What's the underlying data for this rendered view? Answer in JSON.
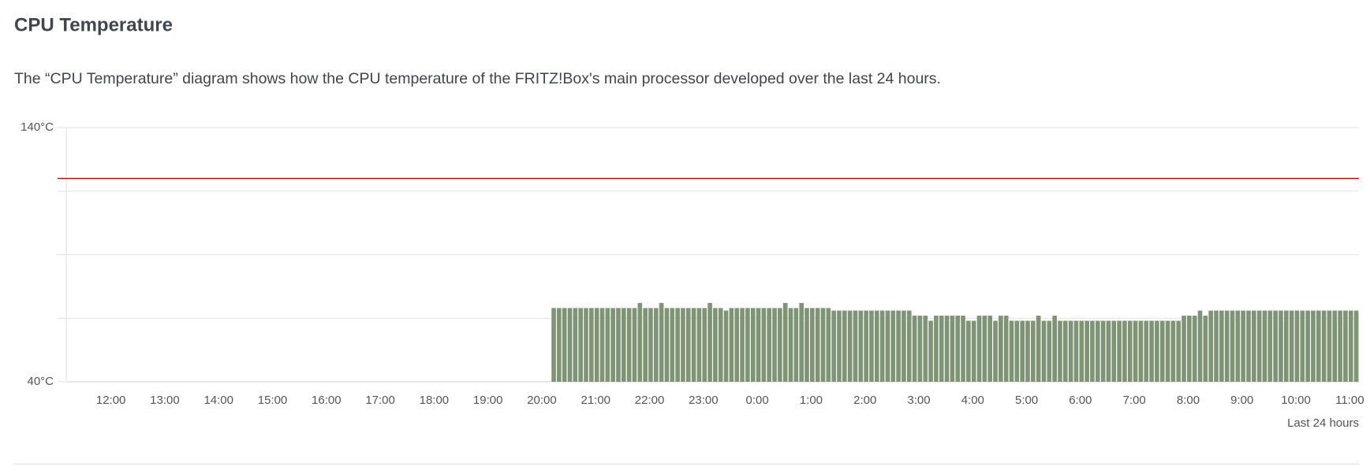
{
  "chart_data": {
    "type": "bar",
    "title": "CPU Temperature",
    "description": "The “CPU Temperature” diagram shows how the CPU temperature of the FRITZ!Box's main processor developed over the last 24 hours.",
    "x_label": "Last 24 hours",
    "categories": [
      null,
      null,
      null,
      null,
      null,
      null,
      null,
      null,
      "12:00",
      null,
      null,
      null,
      null,
      null,
      null,
      null,
      null,
      null,
      "13:00",
      null,
      null,
      null,
      null,
      null,
      null,
      null,
      null,
      null,
      "14:00",
      null,
      null,
      null,
      null,
      null,
      null,
      null,
      null,
      null,
      "15:00",
      null,
      null,
      null,
      null,
      null,
      null,
      null,
      null,
      null,
      "16:00",
      null,
      null,
      null,
      null,
      null,
      null,
      null,
      null,
      null,
      "17:00",
      null,
      null,
      null,
      null,
      null,
      null,
      null,
      null,
      null,
      "18:00",
      null,
      null,
      null,
      null,
      null,
      null,
      null,
      null,
      null,
      "19:00",
      null,
      null,
      null,
      null,
      null,
      null,
      null,
      null,
      null,
      "20:00",
      null,
      null,
      null,
      null,
      null,
      null,
      null,
      null,
      null,
      "21:00",
      null,
      null,
      null,
      null,
      null,
      null,
      null,
      null,
      null,
      "22:00",
      null,
      null,
      null,
      null,
      null,
      null,
      null,
      null,
      null,
      "23:00",
      null,
      null,
      null,
      null,
      null,
      null,
      null,
      null,
      null,
      "0:00",
      null,
      null,
      null,
      null,
      null,
      null,
      null,
      null,
      null,
      "1:00",
      null,
      null,
      null,
      null,
      null,
      null,
      null,
      null,
      null,
      "2:00",
      null,
      null,
      null,
      null,
      null,
      null,
      null,
      null,
      null,
      "3:00",
      null,
      null,
      null,
      null,
      null,
      null,
      null,
      null,
      null,
      "4:00",
      null,
      null,
      null,
      null,
      null,
      null,
      null,
      null,
      null,
      "5:00",
      null,
      null,
      null,
      null,
      null,
      null,
      null,
      null,
      null,
      "6:00",
      null,
      null,
      null,
      null,
      null,
      null,
      null,
      null,
      null,
      "7:00",
      null,
      null,
      null,
      null,
      null,
      null,
      null,
      null,
      null,
      "8:00",
      null,
      null,
      null,
      null,
      null,
      null,
      null,
      null,
      null,
      "9:00",
      null,
      null,
      null,
      null,
      null,
      null,
      null,
      null,
      null,
      "10:00",
      null,
      null,
      null,
      null,
      null,
      null,
      null,
      null,
      null,
      "11:00",
      null
    ],
    "values": [
      null,
      null,
      null,
      null,
      null,
      null,
      null,
      null,
      null,
      null,
      null,
      null,
      null,
      null,
      null,
      null,
      null,
      null,
      null,
      null,
      null,
      null,
      null,
      null,
      null,
      null,
      null,
      null,
      null,
      null,
      null,
      null,
      null,
      null,
      null,
      null,
      null,
      null,
      null,
      null,
      null,
      null,
      null,
      null,
      null,
      null,
      null,
      null,
      null,
      null,
      null,
      null,
      null,
      null,
      null,
      null,
      null,
      null,
      null,
      null,
      null,
      null,
      null,
      null,
      null,
      null,
      null,
      null,
      null,
      null,
      null,
      null,
      null,
      null,
      null,
      null,
      null,
      null,
      null,
      null,
      null,
      null,
      null,
      null,
      null,
      null,
      null,
      null,
      null,
      null,
      69,
      69,
      69,
      69,
      69,
      69,
      69,
      69,
      69,
      69,
      69,
      69,
      69,
      69,
      69,
      69,
      71,
      69,
      69,
      69,
      71,
      69,
      69,
      69,
      69,
      69,
      69,
      69,
      69,
      71,
      69,
      69,
      68,
      69,
      69,
      69,
      69,
      69,
      69,
      69,
      69,
      69,
      69,
      71,
      69,
      69,
      71,
      69,
      69,
      69,
      69,
      69,
      68,
      68,
      68,
      68,
      68,
      68,
      68,
      68,
      68,
      68,
      68,
      68,
      68,
      68,
      68,
      66,
      66,
      66,
      64,
      66,
      66,
      66,
      66,
      66,
      66,
      64,
      64,
      66,
      66,
      66,
      64,
      66,
      66,
      64,
      64,
      64,
      64,
      64,
      66,
      64,
      64,
      66,
      64,
      64,
      64,
      64,
      64,
      64,
      64,
      64,
      64,
      64,
      64,
      64,
      64,
      64,
      64,
      64,
      64,
      64,
      64,
      64,
      64,
      64,
      64,
      66,
      66,
      66,
      68,
      66,
      68,
      68,
      68,
      68,
      68,
      68,
      68,
      68,
      68,
      68,
      68,
      68,
      68,
      68,
      68,
      68,
      68,
      68,
      68,
      68,
      68,
      68,
      68,
      68,
      68,
      68,
      68,
      68
    ],
    "color": "#7e9474",
    "ylim": [
      40,
      140
    ],
    "yticks": [
      {
        "value": 40,
        "label": "40°C"
      },
      {
        "value": 65,
        "label": null
      },
      {
        "value": 90,
        "label": null
      },
      {
        "value": 115,
        "label": null
      },
      {
        "value": 140,
        "label": "140°C"
      }
    ],
    "grid": true,
    "threshold": 120,
    "threshold_color": "#c00000"
  }
}
